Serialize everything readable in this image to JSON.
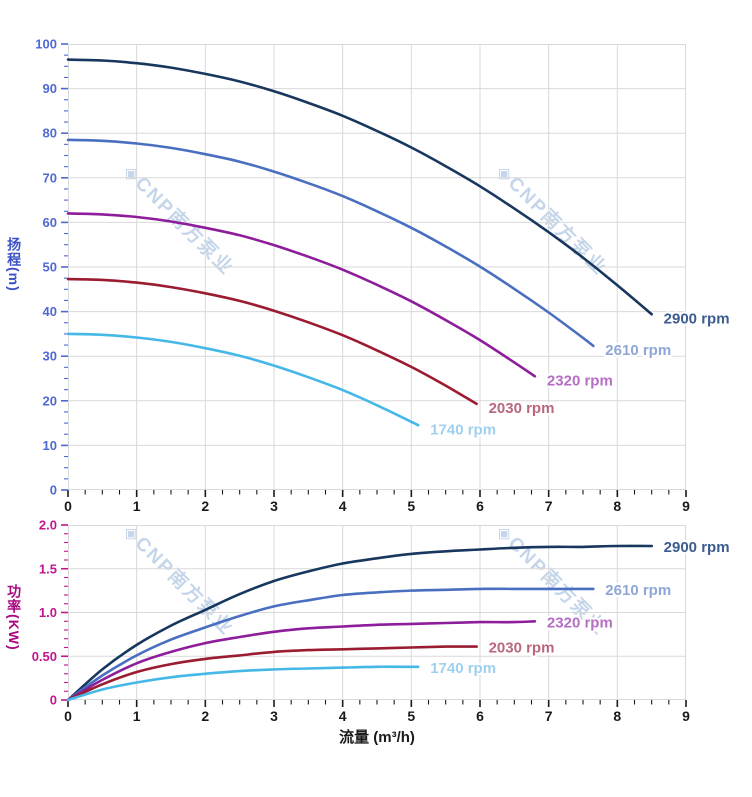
{
  "watermark": {
    "text": "◈CNP南方泵业",
    "color": "#bcd0e8"
  },
  "axis_titles": {
    "head": {
      "text": "扬程(m)",
      "color": "#3c52c6"
    },
    "power": {
      "text": "功率(KW)",
      "color": "#a80a80"
    },
    "flow": {
      "text": "流量 (m³/h)",
      "color": "#1a1a1a"
    }
  },
  "chart_data": [
    {
      "type": "line",
      "title": "Pump head curves",
      "xlabel": "",
      "ylabel": "扬程(m)",
      "xlim": [
        0,
        9
      ],
      "ylim": [
        0,
        100
      ],
      "grid": true,
      "grid_color": "#d9d9d9",
      "x_tick_color": "#1a1a1a",
      "y_tick_color": "#5068d4",
      "legend_position": "right-of-curve-end",
      "x_ticks": [
        {
          "v": 0,
          "label": "0"
        },
        {
          "v": 1,
          "label": "1"
        },
        {
          "v": 2,
          "label": "2"
        },
        {
          "v": 3,
          "label": "3"
        },
        {
          "v": 4,
          "label": "4"
        },
        {
          "v": 5,
          "label": "5"
        },
        {
          "v": 6,
          "label": "6"
        },
        {
          "v": 7,
          "label": "7"
        },
        {
          "v": 8,
          "label": "8"
        },
        {
          "v": 9,
          "label": "9"
        }
      ],
      "y_ticks": [
        {
          "v": 0,
          "label": "0"
        },
        {
          "v": 10,
          "label": "10"
        },
        {
          "v": 20,
          "label": "20"
        },
        {
          "v": 30,
          "label": "30"
        },
        {
          "v": 40,
          "label": "40"
        },
        {
          "v": 50,
          "label": "50"
        },
        {
          "v": 60,
          "label": "60"
        },
        {
          "v": 70,
          "label": "70"
        },
        {
          "v": 80,
          "label": "80"
        },
        {
          "v": 90,
          "label": "90"
        },
        {
          "v": 100,
          "label": "100"
        }
      ],
      "series": [
        {
          "name": "2900 rpm",
          "color": "#17375e",
          "label_color": "#3d5c8e",
          "points": [
            [
              0,
              96.5
            ],
            [
              0.5,
              96.3
            ],
            [
              1,
              95.7
            ],
            [
              1.5,
              94.7
            ],
            [
              2,
              93.3
            ],
            [
              2.5,
              91.6
            ],
            [
              3,
              89.4
            ],
            [
              3.5,
              86.8
            ],
            [
              4,
              83.9
            ],
            [
              4.5,
              80.5
            ],
            [
              5,
              76.8
            ],
            [
              5.5,
              72.6
            ],
            [
              6,
              68.1
            ],
            [
              6.5,
              63.1
            ],
            [
              7,
              57.8
            ],
            [
              7.5,
              52.1
            ],
            [
              8,
              45.9
            ],
            [
              8.5,
              39.4
            ]
          ]
        },
        {
          "name": "2610 rpm",
          "color": "#4a6fc0",
          "label_color": "#8fa7d6",
          "points": [
            [
              0,
              78.5
            ],
            [
              0.5,
              78.3
            ],
            [
              1,
              77.7
            ],
            [
              1.5,
              76.7
            ],
            [
              2,
              75.3
            ],
            [
              2.5,
              73.6
            ],
            [
              3,
              71.4
            ],
            [
              3.5,
              68.8
            ],
            [
              4,
              65.9
            ],
            [
              4.5,
              62.5
            ],
            [
              5,
              58.8
            ],
            [
              5.5,
              54.6
            ],
            [
              6,
              50.1
            ],
            [
              6.5,
              45.1
            ],
            [
              7,
              39.8
            ],
            [
              7.5,
              34.1
            ],
            [
              7.65,
              32.3
            ]
          ]
        },
        {
          "name": "2320 rpm",
          "color": "#8d1d9b",
          "label_color": "#b66ec4",
          "points": [
            [
              0,
              62
            ],
            [
              0.5,
              61.8
            ],
            [
              1,
              61.2
            ],
            [
              1.5,
              60.2
            ],
            [
              2,
              58.8
            ],
            [
              2.5,
              57.1
            ],
            [
              3,
              54.9
            ],
            [
              3.5,
              52.3
            ],
            [
              4,
              49.4
            ],
            [
              4.5,
              46
            ],
            [
              5,
              42.3
            ],
            [
              5.5,
              38.1
            ],
            [
              6,
              33.6
            ],
            [
              6.5,
              28.6
            ],
            [
              6.8,
              25.5
            ]
          ]
        },
        {
          "name": "2030 rpm",
          "color": "#9b1b30",
          "label_color": "#b9687c",
          "points": [
            [
              0,
              47.3
            ],
            [
              0.5,
              47.1
            ],
            [
              1,
              46.5
            ],
            [
              1.5,
              45.5
            ],
            [
              2,
              44.1
            ],
            [
              2.5,
              42.4
            ],
            [
              3,
              40.2
            ],
            [
              3.5,
              37.6
            ],
            [
              4,
              34.7
            ],
            [
              4.5,
              31.3
            ],
            [
              5,
              27.6
            ],
            [
              5.5,
              23.4
            ],
            [
              5.95,
              19.3
            ]
          ]
        },
        {
          "name": "1740 rpm",
          "color": "#45b8e8",
          "label_color": "#9fd0ef",
          "points": [
            [
              0,
              35
            ],
            [
              0.5,
              34.8
            ],
            [
              1,
              34.2
            ],
            [
              1.5,
              33.2
            ],
            [
              2,
              31.8
            ],
            [
              2.5,
              30.1
            ],
            [
              3,
              27.9
            ],
            [
              3.5,
              25.3
            ],
            [
              4,
              22.4
            ],
            [
              4.5,
              19
            ],
            [
              5,
              15.3
            ],
            [
              5.1,
              14.5
            ]
          ]
        }
      ]
    },
    {
      "type": "line",
      "title": "Pump power curves",
      "xlabel": "流量 (m³/h)",
      "ylabel": "功率(KW)",
      "xlim": [
        0,
        9
      ],
      "ylim": [
        0,
        2
      ],
      "grid": true,
      "grid_color": "#d9d9d9",
      "x_tick_color": "#1a1a1a",
      "y_tick_color": "#c4158e",
      "legend_position": "right-of-curve-end",
      "x_ticks": [
        {
          "v": 0,
          "label": "0"
        },
        {
          "v": 1,
          "label": "1"
        },
        {
          "v": 2,
          "label": "2"
        },
        {
          "v": 3,
          "label": "3"
        },
        {
          "v": 4,
          "label": "4"
        },
        {
          "v": 5,
          "label": "5"
        },
        {
          "v": 6,
          "label": "6"
        },
        {
          "v": 7,
          "label": "7"
        },
        {
          "v": 8,
          "label": "8"
        },
        {
          "v": 9,
          "label": "9"
        }
      ],
      "y_ticks": [
        {
          "v": 0,
          "label": "0"
        },
        {
          "v": 0.5,
          "label": "0.50"
        },
        {
          "v": 1,
          "label": "1.0"
        },
        {
          "v": 1.5,
          "label": "1.5"
        },
        {
          "v": 2,
          "label": "2.0"
        }
      ],
      "series": [
        {
          "name": "2900 rpm",
          "color": "#17375e",
          "label_color": "#3d5c8e",
          "points": [
            [
              0,
              0
            ],
            [
              0.5,
              0.35
            ],
            [
              1,
              0.63
            ],
            [
              1.5,
              0.85
            ],
            [
              2,
              1.03
            ],
            [
              2.5,
              1.21
            ],
            [
              3,
              1.36
            ],
            [
              3.5,
              1.47
            ],
            [
              4,
              1.56
            ],
            [
              4.5,
              1.62
            ],
            [
              5,
              1.67
            ],
            [
              5.5,
              1.7
            ],
            [
              6,
              1.72
            ],
            [
              6.5,
              1.74
            ],
            [
              7,
              1.75
            ],
            [
              7.5,
              1.75
            ],
            [
              8,
              1.76
            ],
            [
              8.5,
              1.76
            ]
          ]
        },
        {
          "name": "2610 rpm",
          "color": "#4a6fc0",
          "label_color": "#8fa7d6",
          "points": [
            [
              0,
              0
            ],
            [
              0.5,
              0.28
            ],
            [
              1,
              0.51
            ],
            [
              1.5,
              0.69
            ],
            [
              2,
              0.83
            ],
            [
              2.5,
              0.96
            ],
            [
              3,
              1.07
            ],
            [
              3.5,
              1.14
            ],
            [
              4,
              1.2
            ],
            [
              4.5,
              1.23
            ],
            [
              5,
              1.25
            ],
            [
              5.5,
              1.26
            ],
            [
              6,
              1.27
            ],
            [
              6.5,
              1.27
            ],
            [
              7,
              1.27
            ],
            [
              7.65,
              1.27
            ]
          ]
        },
        {
          "name": "2320 rpm",
          "color": "#8d1d9b",
          "label_color": "#b66ec4",
          "points": [
            [
              0,
              0
            ],
            [
              0.5,
              0.23
            ],
            [
              1,
              0.42
            ],
            [
              1.5,
              0.55
            ],
            [
              2,
              0.65
            ],
            [
              2.5,
              0.72
            ],
            [
              3,
              0.78
            ],
            [
              3.5,
              0.82
            ],
            [
              4,
              0.84
            ],
            [
              4.5,
              0.86
            ],
            [
              5,
              0.87
            ],
            [
              5.5,
              0.88
            ],
            [
              6,
              0.89
            ],
            [
              6.5,
              0.89
            ],
            [
              6.8,
              0.9
            ]
          ]
        },
        {
          "name": "2030 rpm",
          "color": "#9b1b30",
          "label_color": "#b9687c",
          "points": [
            [
              0,
              0
            ],
            [
              0.5,
              0.18
            ],
            [
              1,
              0.32
            ],
            [
              1.5,
              0.41
            ],
            [
              2,
              0.47
            ],
            [
              2.5,
              0.51
            ],
            [
              3,
              0.55
            ],
            [
              3.5,
              0.57
            ],
            [
              4,
              0.58
            ],
            [
              4.5,
              0.59
            ],
            [
              5,
              0.6
            ],
            [
              5.5,
              0.61
            ],
            [
              5.95,
              0.61
            ]
          ]
        },
        {
          "name": "1740 rpm",
          "color": "#45b8e8",
          "label_color": "#9fd0ef",
          "points": [
            [
              0,
              0
            ],
            [
              0.5,
              0.12
            ],
            [
              1,
              0.2
            ],
            [
              1.5,
              0.26
            ],
            [
              2,
              0.3
            ],
            [
              2.5,
              0.33
            ],
            [
              3,
              0.35
            ],
            [
              3.5,
              0.36
            ],
            [
              4,
              0.37
            ],
            [
              4.5,
              0.38
            ],
            [
              5,
              0.38
            ],
            [
              5.1,
              0.38
            ]
          ]
        }
      ]
    }
  ]
}
